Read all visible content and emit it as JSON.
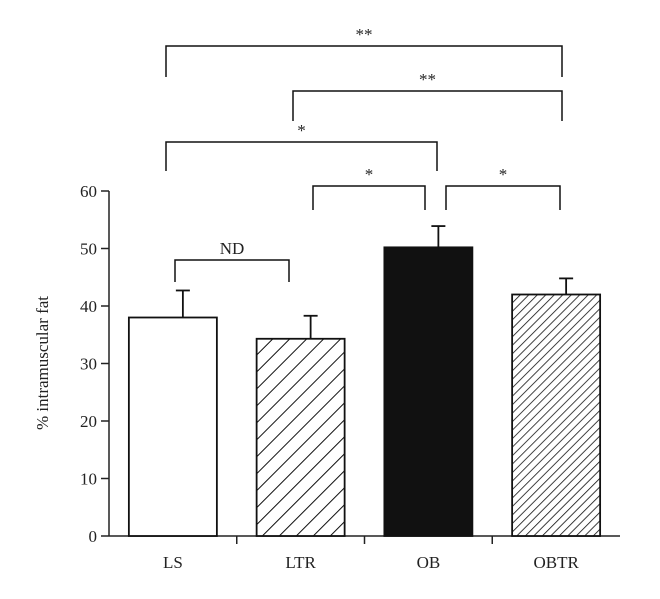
{
  "chart_data": {
    "type": "bar",
    "title": "",
    "xlabel": "",
    "ylabel": "% intramuscular fat",
    "ylim": [
      0,
      60
    ],
    "yticks": [
      0,
      10,
      20,
      30,
      40,
      50,
      60
    ],
    "categories": [
      "LS",
      "LTR",
      "OB",
      "OBTR"
    ],
    "values": [
      38,
      34.3,
      50.2,
      42
    ],
    "errors": [
      4.7,
      4.0,
      3.7,
      2.8
    ],
    "fills": [
      "white",
      "hatch-wide",
      "black",
      "hatch-fine"
    ],
    "colors": {
      "bar_stroke": "#111111",
      "solid_fill": "#111111",
      "open_fill": "#ffffff"
    },
    "grid": false,
    "significance": [
      {
        "from": "LS",
        "to": "LTR",
        "label": "ND"
      },
      {
        "from": "LTR",
        "to": "OB",
        "label": "*"
      },
      {
        "from": "OB",
        "to": "OBTR",
        "label": "*"
      },
      {
        "from": "LS",
        "to": "OB",
        "label": "*"
      },
      {
        "from": "LTR",
        "to": "OBTR",
        "label": "**"
      },
      {
        "from": "LS",
        "to": "OBTR",
        "label": "**"
      }
    ]
  }
}
